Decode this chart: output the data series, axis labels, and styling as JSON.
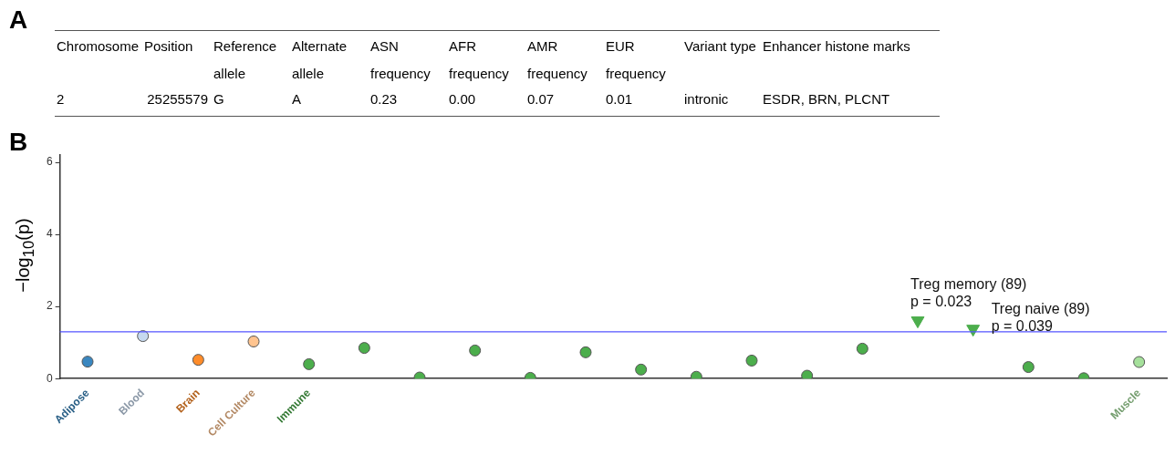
{
  "chart_data": [
    {
      "type": "other",
      "title": "A",
      "categories": [
        "Chromosome",
        "Position",
        "Reference allele",
        "Alternate allele",
        "ASN frequency",
        "AFR frequency",
        "AMR frequency",
        "EUR frequency",
        "Variant type",
        "Enhancer histone marks"
      ],
      "annotations": [
        "2",
        "25255579",
        "G",
        "A",
        "0.23",
        "0.00",
        "0.07",
        "0.01",
        "intronic",
        "ESDR, BRN, PLCNT"
      ]
    },
    {
      "type": "scatter",
      "title": "B",
      "ylabel": "−log$_{10}$(p)",
      "categories": [
        "Adipose",
        "Blood",
        "Brain",
        "Cell Culture",
        "Immune",
        null,
        null,
        null,
        null,
        null,
        null,
        null,
        null,
        null,
        null,
        null,
        null,
        null,
        null,
        "Muscle"
      ],
      "series": [
        {
          "type": "scatter",
          "marker": "circle",
          "values": [
            0.47,
            1.18,
            0.52,
            1.03,
            0.4,
            0.85,
            0.03,
            0.78,
            0.02,
            0.73,
            0.25,
            0.05,
            0.5,
            0.08,
            0.83,
            null,
            null,
            0.32,
            0.01,
            0.46
          ],
          "colors": [
            "#3a87c0",
            "#c6d9ef",
            "#ff8c2a",
            "#ffc48f",
            "#4cae4c",
            "#4cae4c",
            "#4cae4c",
            "#4cae4c",
            "#4cae4c",
            "#4cae4c",
            "#4cae4c",
            "#4cae4c",
            "#4cae4c",
            "#4cae4c",
            "#4cae4c",
            "#4cae4c",
            "#4cae4c",
            "#4cae4c",
            "#4cae4c",
            "#a5e09b"
          ]
        },
        {
          "type": "scatter",
          "marker": "triangle",
          "color": "#4cae4c",
          "values": [
            null,
            null,
            null,
            null,
            null,
            null,
            null,
            null,
            null,
            null,
            null,
            null,
            null,
            null,
            null,
            1.61,
            1.38,
            null,
            null,
            null
          ]
        }
      ],
      "ylim": [
        0,
        6.2
      ],
      "yticks": [
        0,
        2,
        4,
        6
      ],
      "ref_lines": [
        {
          "axis": "y",
          "value": 1.3,
          "color": "#5555ff"
        }
      ],
      "annotations": [
        "Treg memory (89)\np = 0.023",
        "Treg naive (89)\np = 0.039"
      ],
      "grid": false,
      "legend": false
    }
  ]
}
